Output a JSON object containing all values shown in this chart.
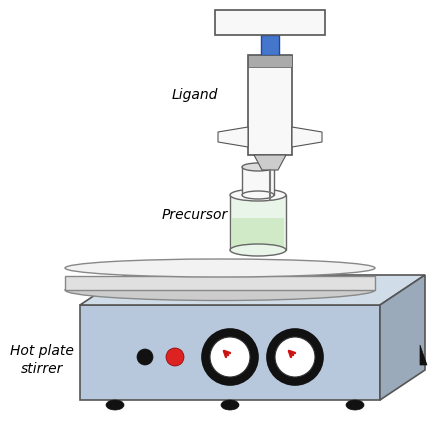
{
  "bg_color": "#ffffff",
  "hot_plate_front": "#b8c8dc",
  "hot_plate_top": "#d0dde8",
  "hot_plate_right": "#9aaabb",
  "disk_top": "#f2f2f2",
  "disk_side": "#e0e0e0",
  "disk_edge_color": "#888888",
  "vial_body_color": "#eaf5ea",
  "vial_liquid_color": "#d0eac8",
  "vial_glass": "#f8f8f8",
  "vial_outline": "#666666",
  "syringe_blue": "#4477cc",
  "syringe_body": "#f8f8f8",
  "syringe_gray": "#aaaaaa",
  "syringe_outline": "#555555",
  "arrow_color": "#888888",
  "knob_outer": "#111111",
  "knob_inner": "#ffffff",
  "knob_red": "#cc1111",
  "dot_black": "#111111",
  "dot_red": "#dd2222",
  "foot_color": "#111111",
  "tri_color": "#111111",
  "label_ligand": "Ligand",
  "label_precursor": "Precursor",
  "label_hotplate": "Hot plate\nstirrer",
  "font_size": 10
}
